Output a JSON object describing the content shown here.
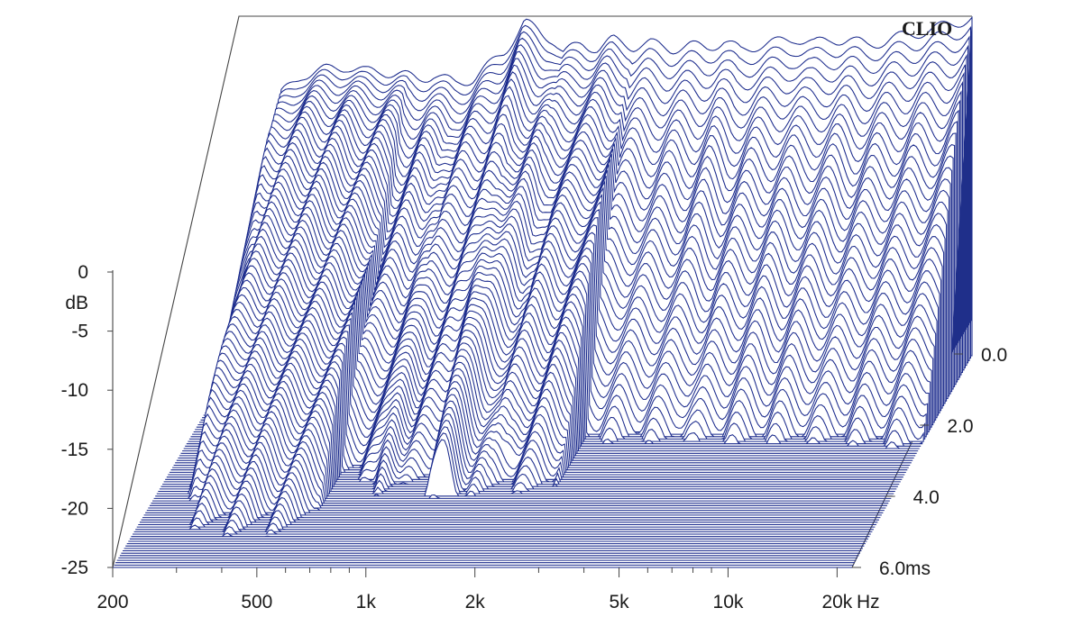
{
  "brand": "CLIO",
  "chart_data": {
    "type": "waterfall",
    "x_scale": "log",
    "x_unit": "Hz",
    "x_ticks": [
      {
        "value": 200,
        "label": "200"
      },
      {
        "value": 500,
        "label": "500"
      },
      {
        "value": 1000,
        "label": "1k"
      },
      {
        "value": 2000,
        "label": "2k"
      },
      {
        "value": 5000,
        "label": "5k"
      },
      {
        "value": 10000,
        "label": "10k"
      },
      {
        "value": 20000,
        "label": "20k"
      }
    ],
    "x_range": [
      200,
      22000
    ],
    "y_label": "dB",
    "y_ticks": [
      0,
      -5,
      -10,
      -15,
      -20,
      -25
    ],
    "y_range": [
      -25,
      0
    ],
    "z_label": "ms",
    "z_ticks": [
      {
        "value": 0.0,
        "label": "0.0"
      },
      {
        "value": 2.0,
        "label": "2.0"
      },
      {
        "value": 4.0,
        "label": "4.0"
      },
      {
        "value": 6.0,
        "label": "6.0"
      }
    ],
    "z_range": [
      0,
      6.0
    ],
    "slices": 90,
    "initial_response": {
      "freq": [
        200,
        230,
        260,
        300,
        350,
        400,
        450,
        500,
        560,
        630,
        700,
        800,
        900,
        1000,
        1100,
        1250,
        1400,
        1500,
        1600,
        1800,
        2000,
        2200,
        2500,
        2800,
        3200,
        3600,
        4000,
        4500,
        5000,
        5600,
        6300,
        7100,
        8000,
        9000,
        10000,
        11200,
        12500,
        14000,
        16000,
        18000,
        20000,
        22000
      ],
      "db": [
        -25,
        -12,
        -3,
        -1.2,
        -0.8,
        -0.5,
        -1,
        -0.9,
        -1.2,
        -1.6,
        -1.2,
        -2,
        -1.5,
        -0.4,
        0.8,
        3.2,
        2.2,
        1.8,
        0.6,
        1.4,
        1,
        1.7,
        1.2,
        1.4,
        1,
        1.2,
        1.1,
        1.6,
        0.8,
        1.3,
        1.5,
        1.9,
        1.4,
        1.8,
        1.7,
        1.3,
        1.6,
        2,
        2.4,
        2.8,
        3.2,
        3.6
      ]
    },
    "decay_ridges": [
      {
        "freq": 400,
        "db": -4,
        "ms": 1.2
      },
      {
        "freq": 560,
        "db": -4,
        "ms": 1.0
      },
      {
        "freq": 820,
        "db": -3,
        "ms": 3.6
      },
      {
        "freq": 1250,
        "db": 0,
        "ms": 3.4
      },
      {
        "freq": 1700,
        "db": -1,
        "ms": 2.8
      },
      {
        "freq": 2200,
        "db": -4,
        "ms": 1.8
      },
      {
        "freq": 3000,
        "db": -8,
        "ms": 1.2
      },
      {
        "freq": 3800,
        "db": -7,
        "ms": 1.4
      },
      {
        "freq": 7200,
        "db": -6,
        "ms": 0.9
      },
      {
        "freq": 15000,
        "db": -8,
        "ms": 0.4
      }
    ],
    "line_color": "#1a2a8c",
    "side_fill_color": "#1f2f8a"
  }
}
